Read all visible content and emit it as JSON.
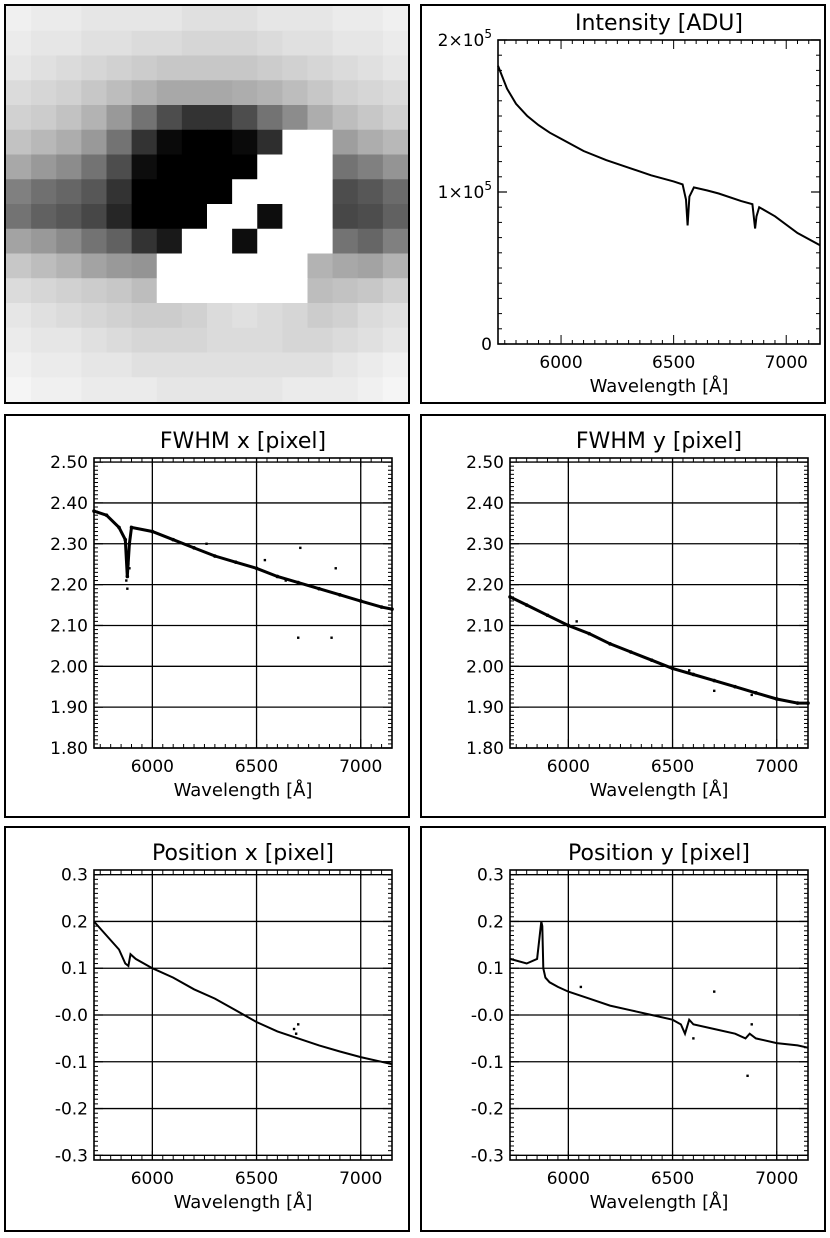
{
  "chart_data": [
    {
      "type": "heatmap",
      "title": "",
      "rows": 16,
      "cols": 16,
      "values": [
        [
          0.06,
          0.08,
          0.08,
          0.1,
          0.1,
          0.1,
          0.1,
          0.12,
          0.12,
          0.12,
          0.1,
          0.1,
          0.1,
          0.08,
          0.08,
          0.06
        ],
        [
          0.08,
          0.1,
          0.1,
          0.12,
          0.12,
          0.14,
          0.14,
          0.16,
          0.16,
          0.16,
          0.14,
          0.12,
          0.12,
          0.1,
          0.1,
          0.08
        ],
        [
          0.1,
          0.12,
          0.14,
          0.16,
          0.18,
          0.2,
          0.22,
          0.22,
          0.22,
          0.22,
          0.2,
          0.18,
          0.16,
          0.14,
          0.12,
          0.1
        ],
        [
          0.14,
          0.16,
          0.18,
          0.22,
          0.26,
          0.3,
          0.34,
          0.34,
          0.34,
          0.32,
          0.3,
          0.26,
          0.22,
          0.18,
          0.16,
          0.14
        ],
        [
          0.18,
          0.2,
          0.24,
          0.3,
          0.4,
          0.55,
          0.7,
          0.8,
          0.8,
          0.7,
          0.55,
          0.45,
          0.32,
          0.26,
          0.22,
          0.18
        ],
        [
          0.24,
          0.28,
          0.32,
          0.4,
          0.55,
          0.8,
          0.96,
          1.0,
          1.0,
          0.96,
          0.82,
          -0.6,
          -0.6,
          0.38,
          0.32,
          0.28
        ],
        [
          0.34,
          0.4,
          0.45,
          0.55,
          0.7,
          0.95,
          1.0,
          1.0,
          1.0,
          1.0,
          -0.8,
          -1.0,
          -1.0,
          0.55,
          0.5,
          0.42
        ],
        [
          0.5,
          0.56,
          0.6,
          0.66,
          0.8,
          1.0,
          1.0,
          1.0,
          1.0,
          -1.0,
          -1.0,
          -1.0,
          -1.0,
          0.7,
          0.66,
          0.58
        ],
        [
          0.55,
          0.62,
          0.66,
          0.72,
          0.85,
          1.0,
          1.0,
          1.0,
          -1.0,
          -1.0,
          0.95,
          -1.0,
          -1.0,
          0.72,
          0.7,
          0.62
        ],
        [
          0.36,
          0.4,
          0.46,
          0.55,
          0.62,
          0.8,
          0.9,
          -1.0,
          -1.0,
          0.95,
          -1.0,
          -1.0,
          -1.0,
          0.55,
          0.6,
          0.5
        ],
        [
          0.22,
          0.26,
          0.3,
          0.36,
          0.4,
          0.42,
          -0.7,
          -1.0,
          -1.0,
          -1.0,
          -1.0,
          -1.0,
          0.3,
          0.34,
          0.36,
          0.3
        ],
        [
          0.14,
          0.16,
          0.18,
          0.2,
          0.22,
          0.26,
          -0.5,
          -1.0,
          -1.0,
          -1.0,
          -1.0,
          -1.0,
          0.26,
          0.24,
          0.22,
          0.18
        ],
        [
          0.1,
          0.12,
          0.14,
          0.16,
          0.18,
          0.2,
          0.2,
          0.18,
          0.14,
          0.12,
          0.14,
          0.16,
          0.2,
          0.18,
          0.14,
          0.12
        ],
        [
          0.08,
          0.1,
          0.1,
          0.12,
          0.14,
          0.16,
          0.16,
          0.16,
          0.14,
          0.14,
          0.14,
          0.16,
          0.16,
          0.14,
          0.12,
          0.1
        ],
        [
          0.06,
          0.08,
          0.08,
          0.1,
          0.1,
          0.12,
          0.12,
          0.12,
          0.12,
          0.12,
          0.12,
          0.12,
          0.12,
          0.1,
          0.08,
          0.06
        ],
        [
          0.04,
          0.06,
          0.06,
          0.08,
          0.08,
          0.08,
          0.1,
          0.1,
          0.1,
          0.1,
          0.1,
          0.08,
          0.08,
          0.08,
          0.06,
          0.04
        ]
      ]
    },
    {
      "type": "line",
      "title": "Intensity [ADU]",
      "xlabel": "Wavelength [Å]",
      "ylabel": "",
      "xlim": [
        5720,
        7150
      ],
      "ylim": [
        0,
        200000
      ],
      "xticks": [
        6000,
        6500,
        7000
      ],
      "xtick_labels": [
        "6000",
        "6500",
        "7000"
      ],
      "yticks": [
        0,
        100000,
        200000
      ],
      "ytick_labels": [
        {
          "base": "0",
          "exp": ""
        },
        {
          "base": "1×10",
          "exp": "5"
        },
        {
          "base": "2×10",
          "exp": "5"
        }
      ],
      "grid": false,
      "series": [
        {
          "x": [
            5720,
            5760,
            5800,
            5850,
            5900,
            5950,
            6000,
            6100,
            6200,
            6300,
            6400,
            6500,
            6540,
            6555,
            6562,
            6570,
            6590,
            6650,
            6700,
            6800,
            6850,
            6862,
            6868,
            6880,
            6950,
            7050,
            7150
          ],
          "y": [
            183000,
            168000,
            158000,
            150000,
            144000,
            139000,
            135000,
            127000,
            121000,
            116000,
            111000,
            107000,
            105000,
            95000,
            78000,
            97000,
            103000,
            101000,
            99000,
            94000,
            92000,
            76000,
            84000,
            90000,
            84000,
            73000,
            65000
          ]
        }
      ]
    },
    {
      "type": "scatter",
      "title": "FWHM x [pixel]",
      "xlabel": "Wavelength [Å]",
      "ylabel": "",
      "xlim": [
        5720,
        7150
      ],
      "ylim": [
        1.8,
        2.51
      ],
      "xticks": [
        6000,
        6500,
        7000
      ],
      "xtick_labels": [
        "6000",
        "6500",
        "7000"
      ],
      "yticks": [
        1.8,
        1.9,
        2.0,
        2.1,
        2.2,
        2.3,
        2.4,
        2.5
      ],
      "ytick_labels": [
        "1.80",
        "1.90",
        "2.00",
        "2.10",
        "2.20",
        "2.30",
        "2.40",
        "2.50"
      ],
      "grid": true,
      "series": [
        {
          "x": [
            5720,
            5780,
            5840,
            5870,
            5880,
            5890,
            5900,
            6000,
            6100,
            6200,
            6300,
            6400,
            6500,
            6600,
            6700,
            6800,
            6900,
            7000,
            7100,
            7150
          ],
          "y": [
            2.38,
            2.37,
            2.34,
            2.31,
            2.22,
            2.3,
            2.34,
            2.33,
            2.31,
            2.29,
            2.27,
            2.255,
            2.24,
            2.22,
            2.205,
            2.19,
            2.175,
            2.16,
            2.145,
            2.14
          ]
        },
        {
          "x": [
            5875,
            5880,
            5885,
            5890,
            6260,
            6540,
            6700,
            6710,
            6860,
            6880,
            6640
          ],
          "y": [
            2.21,
            2.19,
            2.25,
            2.24,
            2.3,
            2.26,
            2.07,
            2.29,
            2.07,
            2.24,
            2.21
          ]
        }
      ]
    },
    {
      "type": "scatter",
      "title": "FWHM y [pixel]",
      "xlabel": "Wavelength [Å]",
      "ylabel": "",
      "xlim": [
        5720,
        7150
      ],
      "ylim": [
        1.8,
        2.51
      ],
      "xticks": [
        6000,
        6500,
        7000
      ],
      "xtick_labels": [
        "6000",
        "6500",
        "7000"
      ],
      "yticks": [
        1.8,
        1.9,
        2.0,
        2.1,
        2.2,
        2.3,
        2.4,
        2.5
      ],
      "ytick_labels": [
        "1.80",
        "1.90",
        "2.00",
        "2.10",
        "2.20",
        "2.30",
        "2.40",
        "2.50"
      ],
      "grid": true,
      "series": [
        {
          "x": [
            5720,
            5800,
            5900,
            6000,
            6100,
            6200,
            6300,
            6400,
            6500,
            6600,
            6700,
            6800,
            6900,
            7000,
            7100,
            7150
          ],
          "y": [
            2.17,
            2.15,
            2.125,
            2.1,
            2.08,
            2.055,
            2.035,
            2.015,
            1.995,
            1.98,
            1.965,
            1.95,
            1.935,
            1.92,
            1.91,
            1.91
          ]
        },
        {
          "x": [
            6040,
            6580,
            6700,
            6880
          ],
          "y": [
            2.11,
            1.99,
            1.94,
            1.93
          ]
        }
      ]
    },
    {
      "type": "line",
      "title": "Position x [pixel]",
      "xlabel": "Wavelength [Å]",
      "ylabel": "",
      "xlim": [
        5720,
        7150
      ],
      "ylim": [
        -0.31,
        0.31
      ],
      "xticks": [
        6000,
        6500,
        7000
      ],
      "xtick_labels": [
        "6000",
        "6500",
        "7000"
      ],
      "yticks": [
        -0.3,
        -0.2,
        -0.1,
        0.0,
        0.1,
        0.2,
        0.3
      ],
      "ytick_labels": [
        "-0.3",
        "-0.2",
        "-0.1",
        "-0.0",
        "0.1",
        "0.2",
        "0.3"
      ],
      "grid": true,
      "series": [
        {
          "x": [
            5720,
            5780,
            5840,
            5870,
            5885,
            5895,
            5920,
            6000,
            6100,
            6200,
            6300,
            6400,
            6500,
            6600,
            6700,
            6800,
            6900,
            7000,
            7100,
            7150
          ],
          "y": [
            0.2,
            0.17,
            0.14,
            0.11,
            0.105,
            0.13,
            0.12,
            0.1,
            0.08,
            0.055,
            0.035,
            0.01,
            -0.015,
            -0.035,
            -0.05,
            -0.065,
            -0.078,
            -0.09,
            -0.1,
            -0.105
          ]
        },
        {
          "x": [
            6680,
            6690,
            6700
          ],
          "y": [
            -0.03,
            -0.04,
            -0.02
          ]
        }
      ]
    },
    {
      "type": "line",
      "title": "Position y [pixel]",
      "xlabel": "Wavelength [Å]",
      "ylabel": "",
      "xlim": [
        5720,
        7150
      ],
      "ylim": [
        -0.31,
        0.31
      ],
      "xticks": [
        6000,
        6500,
        7000
      ],
      "xtick_labels": [
        "6000",
        "6500",
        "7000"
      ],
      "yticks": [
        -0.3,
        -0.2,
        -0.1,
        0.0,
        0.1,
        0.2,
        0.3
      ],
      "ytick_labels": [
        "-0.3",
        "-0.2",
        "-0.1",
        "-0.0",
        "0.1",
        "0.2",
        "0.3"
      ],
      "grid": true,
      "series": [
        {
          "x": [
            5720,
            5800,
            5850,
            5870,
            5875,
            5880,
            5890,
            5910,
            5950,
            6000,
            6100,
            6200,
            6300,
            6400,
            6500,
            6540,
            6560,
            6580,
            6600,
            6700,
            6800,
            6850,
            6870,
            6900,
            7000,
            7100,
            7150
          ],
          "y": [
            0.12,
            0.11,
            0.12,
            0.2,
            0.19,
            0.1,
            0.08,
            0.07,
            0.06,
            0.05,
            0.035,
            0.02,
            0.01,
            0.0,
            -0.01,
            -0.02,
            -0.04,
            -0.01,
            -0.02,
            -0.03,
            -0.04,
            -0.05,
            -0.04,
            -0.05,
            -0.06,
            -0.065,
            -0.07
          ]
        },
        {
          "x": [
            6060,
            6600,
            6700,
            6860,
            6880
          ],
          "y": [
            0.06,
            -0.05,
            0.05,
            -0.13,
            -0.02
          ]
        }
      ]
    }
  ]
}
